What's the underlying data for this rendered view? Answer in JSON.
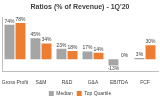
{
  "chart_data": {
    "type": "bar",
    "title": "Ratios (% of Revenue) - 1Q'20",
    "categories": [
      "Gross Profit",
      "S&M",
      "R&D",
      "G&A",
      "EBITDA",
      "FCF"
    ],
    "series": [
      {
        "name": "Median",
        "color": "#a5a5a5",
        "values": [
          74,
          45,
          23,
          17,
          -13,
          3
        ],
        "value_labels": [
          "74%",
          "45%",
          "23%",
          "17%",
          "-13%",
          "3%"
        ]
      },
      {
        "name": "Top Quartile",
        "color": "#ed7d31",
        "values": [
          78,
          34,
          18,
          14,
          0,
          30
        ],
        "value_labels": [
          "78%",
          "34%",
          "18%",
          "14%",
          "0%",
          "30%"
        ]
      }
    ],
    "ylim": [
      -25,
      90
    ],
    "grid": false,
    "legend": "bottom",
    "data_labels": true,
    "tick_labels": "x"
  }
}
